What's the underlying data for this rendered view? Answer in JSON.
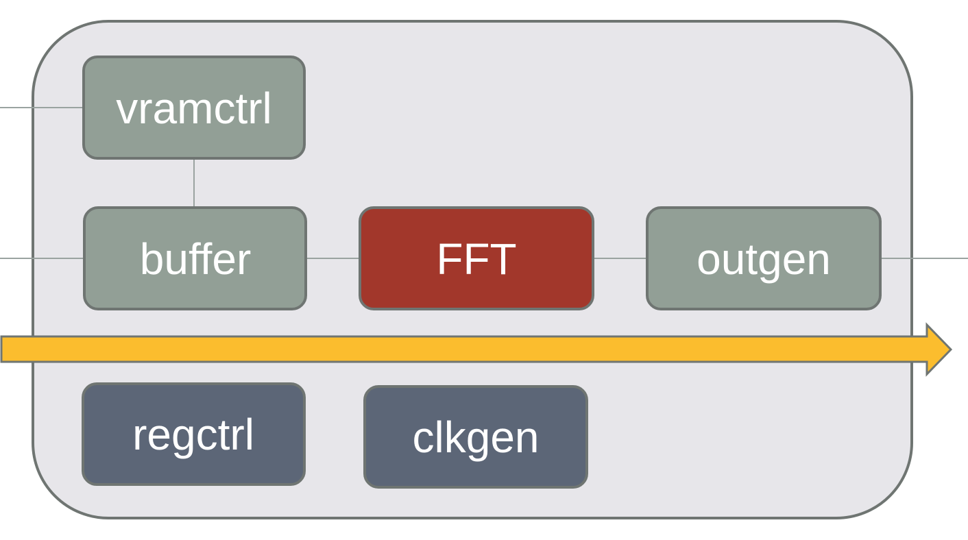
{
  "colors": {
    "background": "#ffffff",
    "container_fill": "#e7e6ea",
    "container_border": "#6f7572",
    "block_green": "#929f96",
    "block_red": "#a2372b",
    "block_slate": "#5c6677",
    "block_border": "#6f7572",
    "label_text": "#ffffff",
    "connector": "#9aa3a0",
    "arrow_fill": "#fbbd2e",
    "arrow_border": "#6f7572"
  },
  "blocks": {
    "vramctrl": {
      "label": "vramctrl",
      "color": "block_green"
    },
    "buffer": {
      "label": "buffer",
      "color": "block_green"
    },
    "fft": {
      "label": "FFT",
      "color": "block_red"
    },
    "outgen": {
      "label": "outgen",
      "color": "block_green"
    },
    "regctrl": {
      "label": "regctrl",
      "color": "block_slate"
    },
    "clkgen": {
      "label": "clkgen",
      "color": "block_slate"
    }
  },
  "connections": [
    {
      "from": "external-left",
      "to": "vramctrl"
    },
    {
      "from": "vramctrl",
      "to": "buffer"
    },
    {
      "from": "external-left",
      "to": "buffer"
    },
    {
      "from": "buffer",
      "to": "fft"
    },
    {
      "from": "fft",
      "to": "outgen"
    },
    {
      "from": "outgen",
      "to": "external-right"
    }
  ],
  "flow_arrow": {
    "direction": "right"
  }
}
